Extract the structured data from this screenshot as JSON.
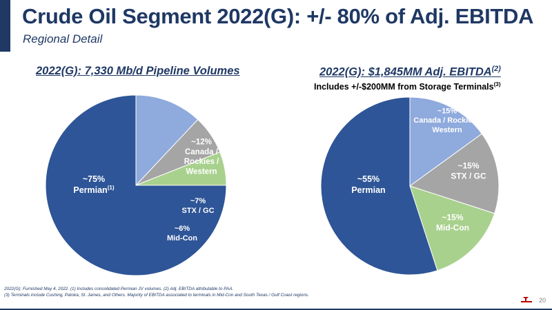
{
  "header": {
    "title": "Crude Oil Segment 2022(G): +/- 80% of Adj. EBITDA",
    "subtitle": "Regional Detail"
  },
  "colors": {
    "brand_navy": "#1f3864",
    "permian": "#2e5597",
    "canada_rockies_western": "#8faadc",
    "stx_gc": "#a5a5a5",
    "mid_con": "#a9d18e"
  },
  "chart_data": [
    {
      "type": "pie",
      "title": "2022(G): 7,330 Mb/d Pipeline Volumes",
      "slices": [
        {
          "label": "Permian",
          "footnote": "(1)",
          "value_text": "~75%",
          "value": 75,
          "color": "#2e5597"
        },
        {
          "label": "Canada / Rockies / Western",
          "value_text": "~12%",
          "value": 12,
          "color": "#8faadc"
        },
        {
          "label": "STX / GC",
          "value_text": "~7%",
          "value": 7,
          "color": "#a5a5a5"
        },
        {
          "label": "Mid-Con",
          "value_text": "~6%",
          "value": 6,
          "color": "#a9d18e"
        }
      ]
    },
    {
      "type": "pie",
      "title": "2022(G): $1,845MM Adj. EBITDA",
      "title_footnote": "(2)",
      "subtitle": "Includes +/-$200MM from Storage Terminals",
      "subtitle_footnote": "(3)",
      "slices": [
        {
          "label": "Permian",
          "value_text": "~55%",
          "value": 55,
          "color": "#2e5597"
        },
        {
          "label": "Canada / Rockies / Western",
          "value_text": "~15%",
          "value": 15,
          "color": "#8faadc"
        },
        {
          "label": "STX / GC",
          "value_text": "~15%",
          "value": 15,
          "color": "#a5a5a5"
        },
        {
          "label": "Mid-Con",
          "value_text": "~15%",
          "value": 15,
          "color": "#a9d18e"
        }
      ]
    }
  ],
  "footnotes": {
    "line1": "2022(G): Furnished May 4, 2022. (1) Includes consolidated Permian JV volumes. (2) Adj. EBITDA attributable to PAA.",
    "line2": "(3) Terminals include Cushing, Patoka, St. James, and Others. Majority of EBITDA associated to terminals in Mid-Con and South Texas / Gulf Coast regions."
  },
  "page_number": "20",
  "logo_icon": "plains-logo-icon"
}
